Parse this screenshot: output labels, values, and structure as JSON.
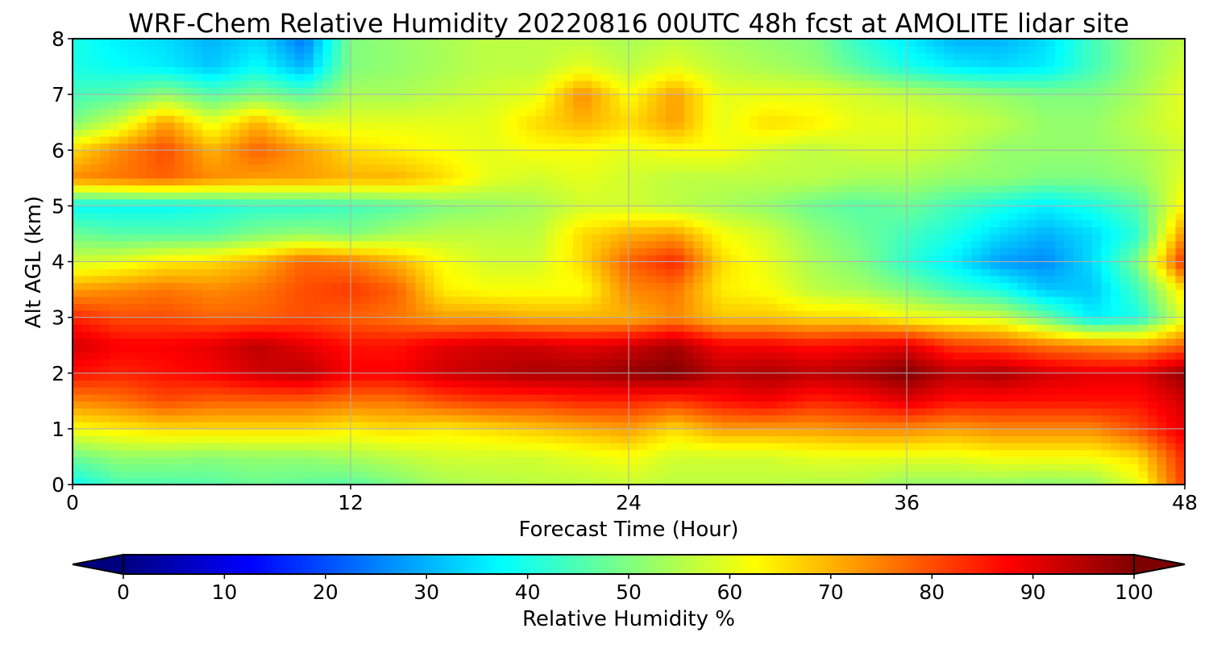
{
  "chart_data": {
    "type": "heatmap",
    "title": "WRF-Chem Relative Humidity 20220816 00UTC 48h fcst at AMOLITE lidar site",
    "xlabel": "Forecast Time (Hour)",
    "ylabel": "Alt AGL (km)",
    "xlim": [
      0,
      48
    ],
    "ylim": [
      0,
      8
    ],
    "x_ticks": [
      "0",
      "12",
      "24",
      "36",
      "48"
    ],
    "y_ticks": [
      "0",
      "1",
      "2",
      "3",
      "4",
      "5",
      "6",
      "7",
      "8"
    ],
    "grid": true,
    "colormap": "jet",
    "colorbar": {
      "label": "Relative Humidity %",
      "min": 0,
      "max": 100,
      "ticks": [
        "0",
        "10",
        "20",
        "30",
        "40",
        "50",
        "60",
        "70",
        "80",
        "90",
        "100"
      ],
      "extend": "both",
      "orientation": "horizontal",
      "placement": "bottom"
    },
    "x": [
      0,
      2,
      4,
      6,
      8,
      10,
      12,
      14,
      16,
      18,
      20,
      22,
      24,
      26,
      28,
      30,
      32,
      34,
      36,
      38,
      40,
      42,
      44,
      46,
      48
    ],
    "y": [
      0,
      0.5,
      1,
      1.5,
      2,
      2.5,
      3,
      3.5,
      4,
      4.5,
      5,
      5.5,
      6,
      6.5,
      7,
      7.5,
      8
    ],
    "z": [
      [
        38,
        45,
        45,
        46,
        48,
        47,
        46,
        50,
        54,
        55,
        56,
        56,
        57,
        56,
        56,
        56,
        55,
        55,
        52,
        52,
        52,
        51,
        52,
        60,
        82
      ],
      [
        48,
        52,
        52,
        51,
        52,
        52,
        54,
        56,
        58,
        58,
        58,
        60,
        62,
        58,
        58,
        58,
        60,
        60,
        60,
        60,
        62,
        62,
        62,
        66,
        84
      ],
      [
        62,
        64,
        66,
        66,
        66,
        66,
        64,
        66,
        64,
        66,
        68,
        70,
        72,
        66,
        72,
        72,
        72,
        74,
        74,
        72,
        74,
        74,
        74,
        80,
        90
      ],
      [
        74,
        76,
        80,
        78,
        78,
        78,
        76,
        76,
        80,
        82,
        82,
        84,
        84,
        82,
        86,
        88,
        84,
        86,
        90,
        86,
        86,
        86,
        86,
        86,
        92
      ],
      [
        86,
        84,
        86,
        88,
        92,
        94,
        88,
        88,
        92,
        94,
        96,
        96,
        98,
        100,
        94,
        96,
        94,
        96,
        100,
        94,
        96,
        92,
        90,
        90,
        98
      ],
      [
        92,
        88,
        88,
        90,
        94,
        90,
        86,
        86,
        90,
        92,
        92,
        90,
        92,
        96,
        88,
        88,
        86,
        88,
        90,
        82,
        80,
        76,
        74,
        72,
        78
      ],
      [
        84,
        80,
        80,
        78,
        78,
        80,
        78,
        76,
        72,
        72,
        70,
        70,
        70,
        74,
        68,
        68,
        66,
        66,
        62,
        60,
        58,
        48,
        36,
        40,
        60
      ],
      [
        72,
        74,
        76,
        74,
        76,
        80,
        82,
        78,
        64,
        62,
        62,
        62,
        74,
        76,
        64,
        62,
        56,
        54,
        50,
        44,
        40,
        32,
        32,
        44,
        66
      ],
      [
        58,
        60,
        64,
        66,
        70,
        78,
        76,
        70,
        62,
        58,
        58,
        66,
        78,
        84,
        66,
        60,
        54,
        50,
        42,
        36,
        28,
        26,
        34,
        50,
        84
      ],
      [
        48,
        46,
        46,
        46,
        50,
        52,
        50,
        54,
        56,
        56,
        56,
        66,
        70,
        72,
        62,
        58,
        52,
        48,
        44,
        40,
        34,
        30,
        34,
        42,
        74
      ],
      [
        38,
        38,
        38,
        40,
        42,
        42,
        44,
        46,
        50,
        52,
        54,
        58,
        58,
        56,
        54,
        52,
        48,
        46,
        48,
        44,
        40,
        36,
        40,
        46,
        64
      ],
      [
        74,
        76,
        78,
        74,
        72,
        72,
        70,
        70,
        66,
        60,
        58,
        60,
        58,
        56,
        56,
        56,
        56,
        54,
        54,
        52,
        52,
        50,
        50,
        52,
        60
      ],
      [
        66,
        74,
        80,
        70,
        78,
        72,
        66,
        64,
        62,
        60,
        62,
        62,
        60,
        62,
        62,
        58,
        56,
        58,
        58,
        56,
        52,
        52,
        52,
        54,
        58
      ],
      [
        50,
        58,
        72,
        60,
        70,
        60,
        60,
        60,
        60,
        60,
        66,
        70,
        66,
        72,
        60,
        66,
        64,
        60,
        60,
        58,
        56,
        52,
        52,
        56,
        60
      ],
      [
        44,
        46,
        52,
        46,
        50,
        46,
        54,
        54,
        56,
        58,
        60,
        74,
        62,
        72,
        60,
        60,
        60,
        58,
        56,
        54,
        52,
        50,
        50,
        54,
        60
      ],
      [
        40,
        38,
        36,
        32,
        38,
        30,
        50,
        52,
        54,
        56,
        56,
        60,
        56,
        60,
        56,
        54,
        52,
        46,
        40,
        36,
        34,
        36,
        44,
        52,
        58
      ],
      [
        40,
        36,
        34,
        30,
        34,
        24,
        50,
        52,
        54,
        56,
        56,
        56,
        54,
        56,
        54,
        52,
        50,
        42,
        36,
        30,
        30,
        34,
        44,
        52,
        56
      ]
    ]
  }
}
